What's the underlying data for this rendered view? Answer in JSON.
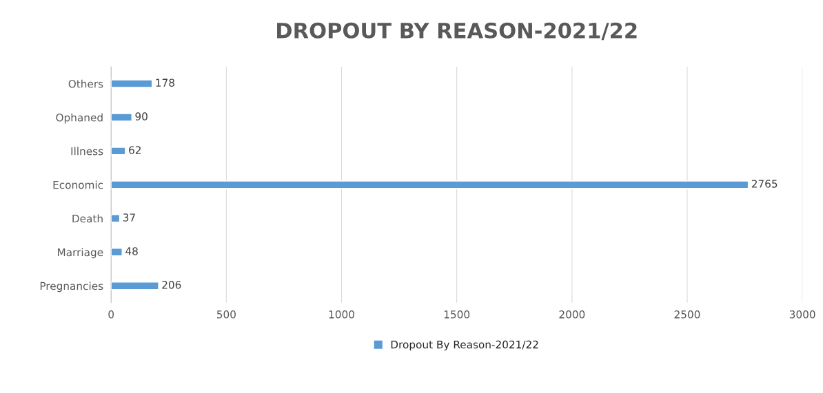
{
  "chart_data": {
    "type": "bar",
    "orientation": "horizontal",
    "title": "DROPOUT BY REASON-2021/22",
    "categories": [
      "Others",
      "Ophaned",
      "Illness",
      "Economic",
      "Death",
      "Marriage",
      "Pregnancies"
    ],
    "series": [
      {
        "name": "Dropout By Reason-2021/22",
        "color": "#5b9bd5",
        "values": [
          178,
          90,
          62,
          2765,
          37,
          48,
          206
        ]
      }
    ],
    "xlim": [
      0,
      3000
    ],
    "xticks": [
      0,
      500,
      1000,
      1500,
      2000,
      2500,
      3000
    ],
    "grid": "x",
    "legend": "bottom",
    "data_labels": true
  }
}
